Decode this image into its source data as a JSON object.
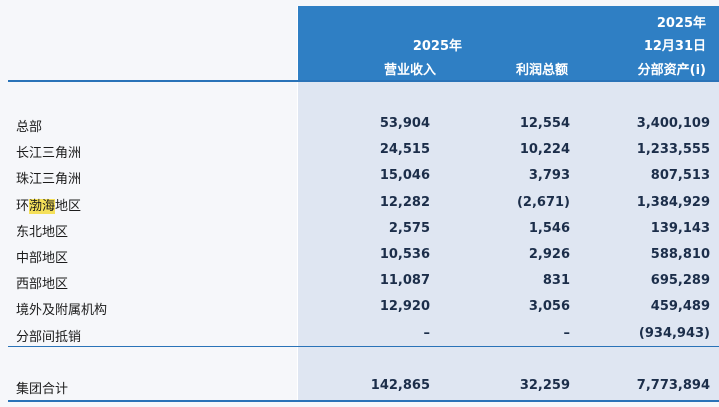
{
  "header": {
    "col1_year": "2025年",
    "col1_label": "营业收入",
    "col2_label": "利润总额",
    "col3_year": "2025年",
    "col3_date": "12月31日",
    "col3_label": "分部资产(i)"
  },
  "rows": [
    {
      "pre": "总部",
      "hl": "",
      "post": "",
      "c1": "53,904",
      "c2": "12,554",
      "c3": "3,400,109"
    },
    {
      "pre": "长江三角洲",
      "hl": "",
      "post": "",
      "c1": "24,515",
      "c2": "10,224",
      "c3": "1,233,555"
    },
    {
      "pre": "珠江三角洲",
      "hl": "",
      "post": "",
      "c1": "15,046",
      "c2": "3,793",
      "c3": "807,513"
    },
    {
      "pre": "环",
      "hl": "渤海",
      "post": "地区",
      "c1": "12,282",
      "c2": "(2,671)",
      "c3": "1,384,929"
    },
    {
      "pre": "东北地区",
      "hl": "",
      "post": "",
      "c1": "2,575",
      "c2": "1,546",
      "c3": "139,143"
    },
    {
      "pre": "中部地区",
      "hl": "",
      "post": "",
      "c1": "10,536",
      "c2": "2,926",
      "c3": "588,810"
    },
    {
      "pre": "西部地区",
      "hl": "",
      "post": "",
      "c1": "11,087",
      "c2": "831",
      "c3": "695,289"
    },
    {
      "pre": "境外及附属机构",
      "hl": "",
      "post": "",
      "c1": "12,920",
      "c2": "3,056",
      "c3": "459,489"
    },
    {
      "pre": "分部间抵销",
      "hl": "",
      "post": "",
      "c1": "–",
      "c2": "–",
      "c3": "(934,943)"
    }
  ],
  "total": {
    "label": "集团合计",
    "c1": "142,865",
    "c2": "32,259",
    "c3": "7,773,894"
  }
}
